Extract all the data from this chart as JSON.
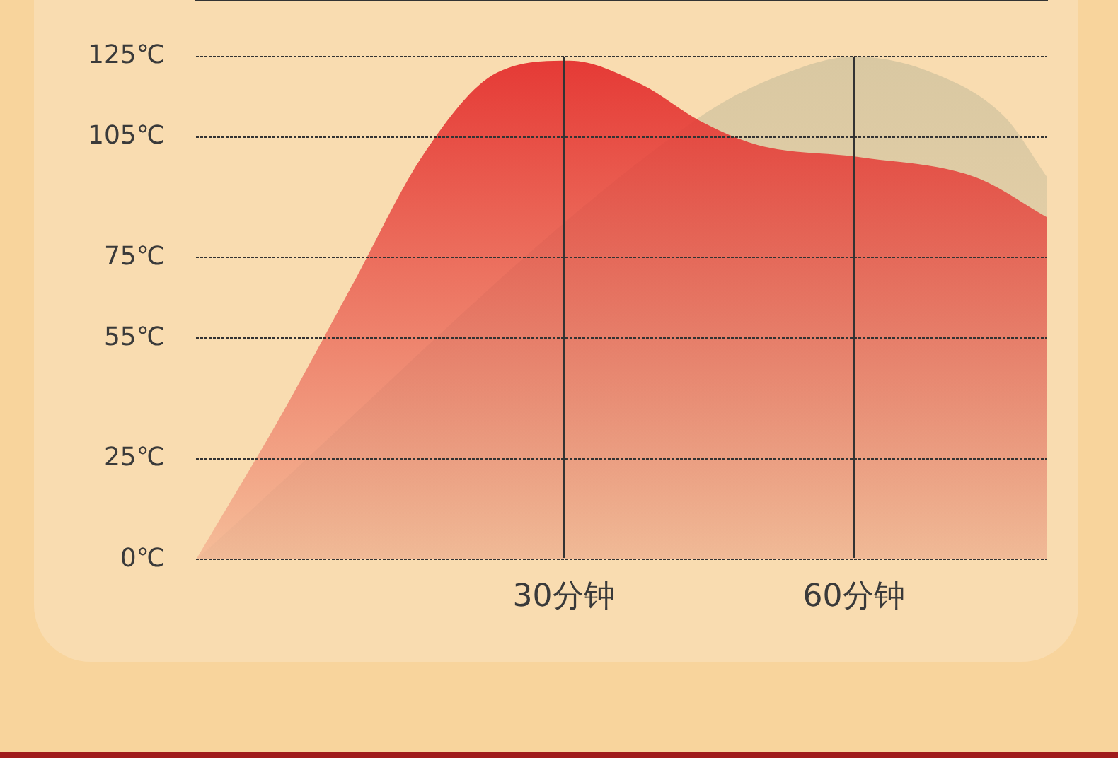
{
  "chart_data": {
    "type": "area",
    "xlim": [
      -8,
      80
    ],
    "xticks": [
      {
        "value": 30,
        "label": "30分钟"
      },
      {
        "value": 60,
        "label": "60分钟"
      }
    ],
    "ylim": [
      0,
      125
    ],
    "yticks": [
      {
        "value": 0,
        "label": "0℃"
      },
      {
        "value": 25,
        "label": "25℃"
      },
      {
        "value": 55,
        "label": "55℃"
      },
      {
        "value": 75,
        "label": "75℃"
      },
      {
        "value": 105,
        "label": "105℃"
      },
      {
        "value": 125,
        "label": "125℃"
      }
    ],
    "grid": true,
    "legend": false,
    "series": [
      {
        "color": "#d9c8a2",
        "x": [
          -8,
          0.6,
          8.1,
          15.6,
          30.6,
          44.1,
          53.1,
          60,
          68.1,
          75.6,
          80
        ],
        "values": [
          0,
          null,
          null,
          null,
          null,
          110,
          121,
          125,
          121,
          110,
          95
        ]
      },
      {
        "color": "#e53935",
        "x": [
          -8,
          0.6,
          8.1,
          15.6,
          23.1,
          30.6,
          38.1,
          44.1,
          50.1,
          60.6,
          72.6,
          80
        ],
        "values": [
          0,
          35,
          68,
          101,
          121,
          124,
          118,
          109,
          103,
          100,
          95,
          85
        ]
      }
    ]
  }
}
